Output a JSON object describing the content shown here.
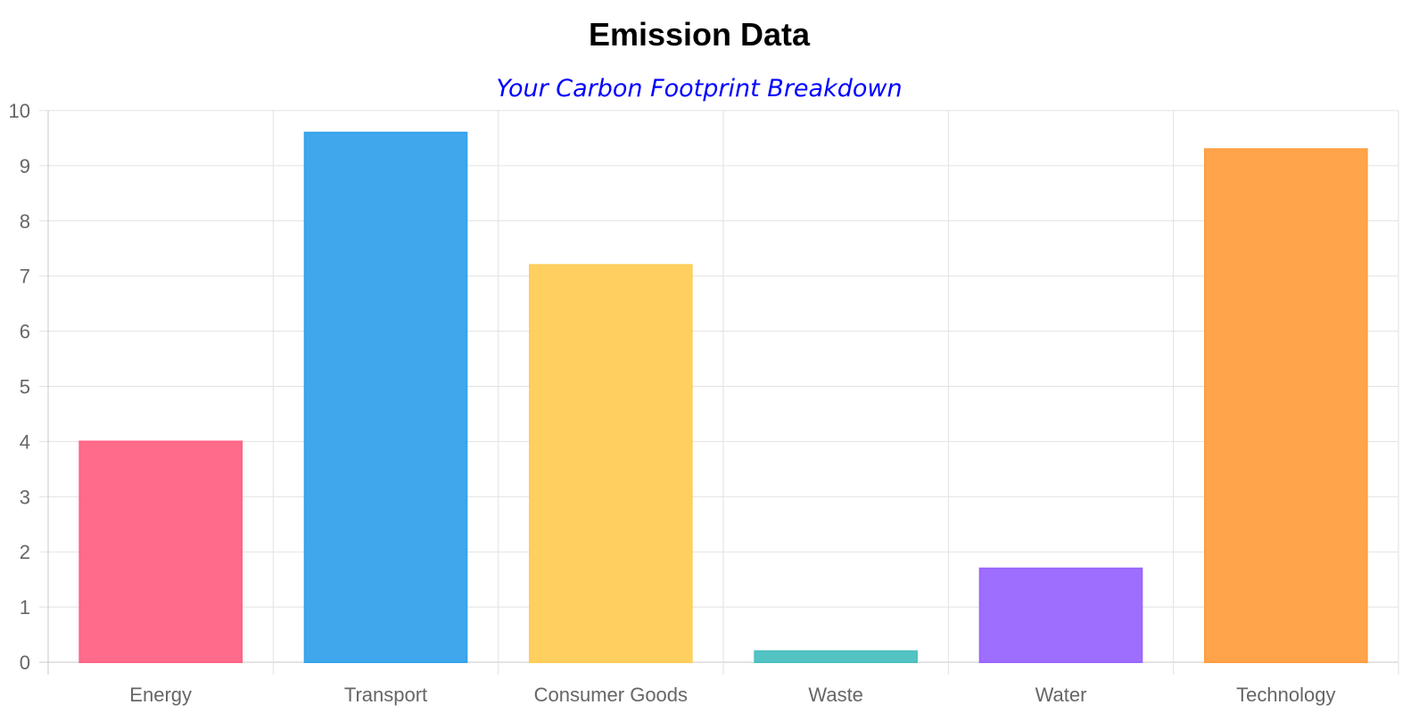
{
  "chart_data": {
    "type": "bar",
    "title": "Emission Data",
    "subtitle": "Your Carbon Footprint Breakdown",
    "categories": [
      "Energy",
      "Transport",
      "Consumer Goods",
      "Waste",
      "Water",
      "Technology"
    ],
    "values": [
      4,
      9.6,
      7.2,
      0.2,
      1.7,
      9.3
    ],
    "colors": [
      "#ff6384",
      "#36a2eb",
      "#ffcd56",
      "#4bc0c0",
      "#9966ff",
      "#ff9f40"
    ],
    "ylim": [
      0,
      10
    ],
    "yticks": [
      "0",
      "1",
      "2",
      "3",
      "4",
      "5",
      "6",
      "7",
      "8",
      "9",
      "10"
    ],
    "grid": true,
    "legend": "none",
    "title_color": "#000000",
    "subtitle_color": "#0000ff"
  }
}
